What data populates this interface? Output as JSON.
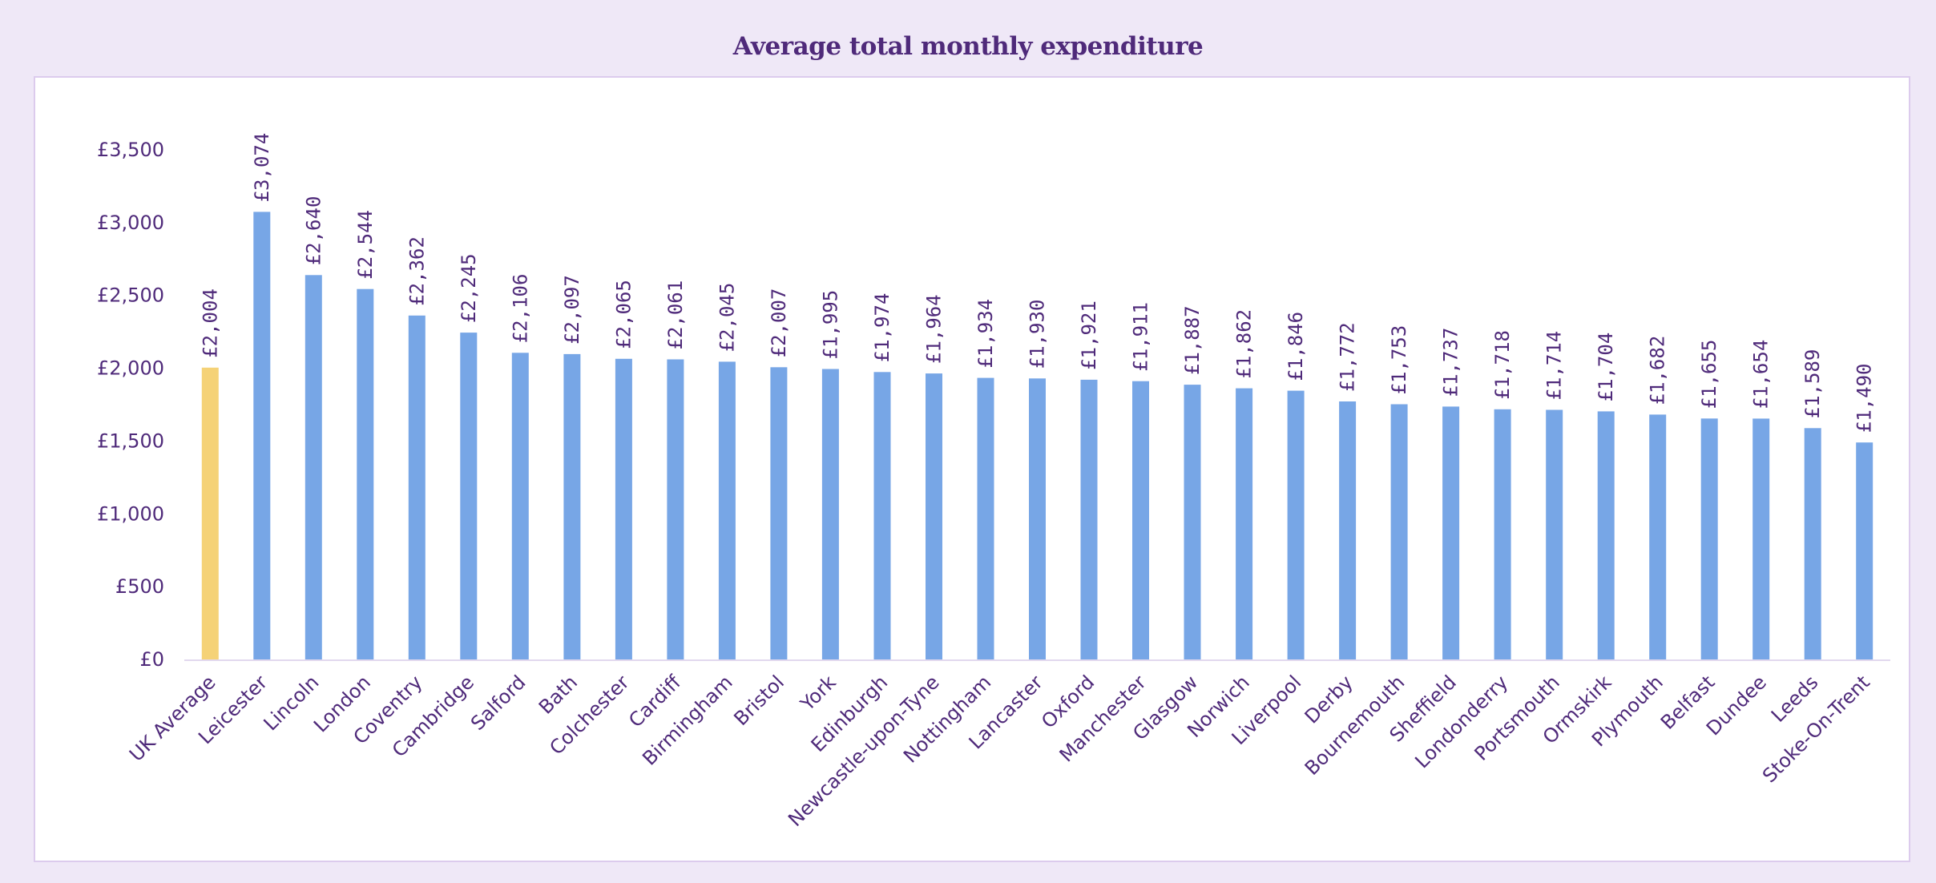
{
  "chart_data": {
    "type": "bar",
    "title": "Average total monthly expenditure",
    "xlabel": "",
    "ylabel": "",
    "ylim": [
      0,
      3500
    ],
    "yticks": [
      0,
      500,
      1000,
      1500,
      2000,
      2500,
      3000,
      3500
    ],
    "ytick_labels": [
      "£0",
      "£500",
      "£1,000",
      "£1,500",
      "£2,000",
      "£2,500",
      "£3,000",
      "£3,500"
    ],
    "grid": false,
    "legend": "none",
    "categories": [
      "UK Average",
      "Leicester",
      "Lincoln",
      "London",
      "Coventry",
      "Cambridge",
      "Salford",
      "Bath",
      "Colchester",
      "Cardiff",
      "Birmingham",
      "Bristol",
      "York",
      "Edinburgh",
      "Newcastle-upon-Tyne",
      "Nottingham",
      "Lancaster",
      "Oxford",
      "Manchester",
      "Glasgow",
      "Norwich",
      "Liverpool",
      "Derby",
      "Bournemouth",
      "Sheffield",
      "Londonderry",
      "Portsmouth",
      "Ormskirk",
      "Plymouth",
      "Belfast",
      "Dundee",
      "Leeds",
      "Stoke-On-Trent"
    ],
    "values": [
      2004,
      3074,
      2640,
      2544,
      2362,
      2245,
      2106,
      2097,
      2065,
      2061,
      2045,
      2007,
      1995,
      1974,
      1964,
      1934,
      1930,
      1921,
      1911,
      1887,
      1862,
      1846,
      1772,
      1753,
      1737,
      1718,
      1714,
      1704,
      1682,
      1655,
      1654,
      1589,
      1490
    ],
    "value_labels": [
      "£2,004",
      "£3,074",
      "£2,640",
      "£2,544",
      "£2,362",
      "£2,245",
      "£2,106",
      "£2,097",
      "£2,065",
      "£2,061",
      "£2,045",
      "£2,007",
      "£1,995",
      "£1,974",
      "£1,964",
      "£1,934",
      "£1,930",
      "£1,921",
      "£1,911",
      "£1,887",
      "£1,862",
      "£1,846",
      "£1,772",
      "£1,753",
      "£1,737",
      "£1,718",
      "£1,714",
      "£1,704",
      "£1,682",
      "£1,655",
      "£1,654",
      "£1,589",
      "£1,490"
    ],
    "highlight_category": "UK Average",
    "colors": {
      "bar": "#77a6e6",
      "highlight": "#f5d277",
      "text": "#4f2a7a",
      "axis": "#e2d8ee"
    }
  }
}
